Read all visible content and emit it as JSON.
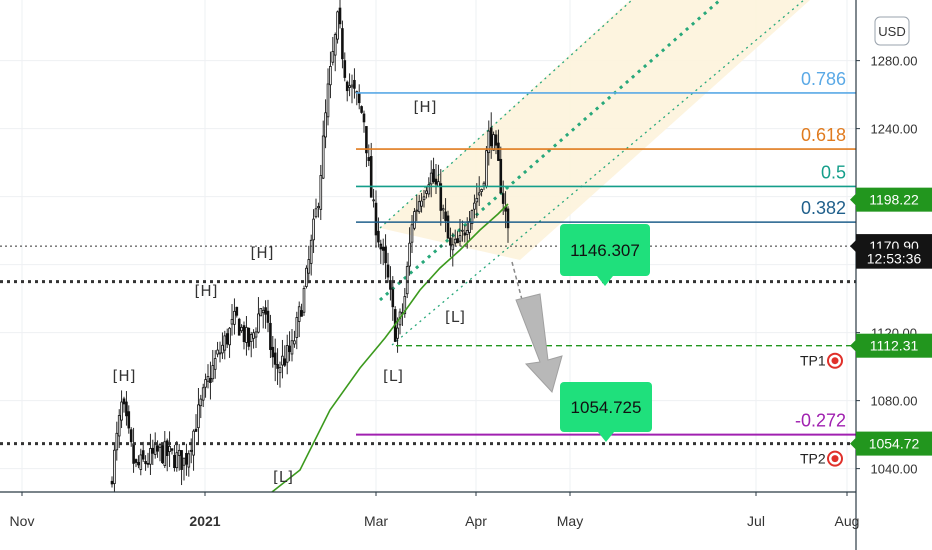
{
  "currency_button": "USD",
  "chart_data": {
    "type": "candlestick",
    "instrument_currency": "USD",
    "y_axis": {
      "ticks": [
        "1280.00",
        "1240.00",
        "1120.00",
        "1080.00",
        "1040.00"
      ],
      "tick_values": [
        1280,
        1240,
        1120,
        1080,
        1040
      ],
      "range": [
        1028,
        1310
      ]
    },
    "x_axis": {
      "ticks": [
        "Nov",
        "2021",
        "Mar",
        "Apr",
        "May",
        "Jul",
        "Aug"
      ]
    },
    "price_tags": [
      {
        "text": "1198.22",
        "value": 1198.22,
        "color": "#22961e",
        "style": "green"
      },
      {
        "text": "1170.90",
        "value": 1170.9,
        "color": "#141414",
        "style": "dark"
      },
      {
        "text": "12:53:36",
        "value": 1163.5,
        "color": "#141414",
        "style": "dark-sub"
      },
      {
        "text": "1112.31",
        "value": 1112.31,
        "color": "#22961e",
        "style": "green"
      },
      {
        "text": "1054.72",
        "value": 1054.72,
        "color": "#22961e",
        "style": "green"
      }
    ],
    "fib_levels": [
      {
        "label": "0.786",
        "value": 1261,
        "color": "#5aa9e6"
      },
      {
        "label": "0.618",
        "value": 1228,
        "color": "#e07b1f"
      },
      {
        "label": "0.5",
        "value": 1206,
        "color": "#149e8a"
      },
      {
        "label": "0.382",
        "value": 1185,
        "color": "#1f5f8b"
      },
      {
        "label": "-0.272",
        "value": 1060,
        "color": "#a020b0"
      }
    ],
    "horizontal_levels": [
      {
        "value": 1170.9,
        "style": "dotted-thin",
        "color": "#333333"
      },
      {
        "value": 1150,
        "style": "dotted-thick",
        "color": "#333333"
      },
      {
        "value": 1054.72,
        "style": "dotted-thick",
        "color": "#333333"
      },
      {
        "value": 1112.31,
        "style": "dashed",
        "color": "#22961e"
      }
    ],
    "callouts": [
      {
        "text": "1146.307",
        "value": 1146.307,
        "color": "#1fe07c"
      },
      {
        "text": "1054.725",
        "value": 1054.725,
        "color": "#1fe07c"
      }
    ],
    "targets": [
      {
        "text": "TP1",
        "value": 1112.31,
        "color": "#e0302a"
      },
      {
        "text": "TP2",
        "value": 1054.72,
        "color": "#e0302a"
      }
    ],
    "pivot_labels": [
      "[H]",
      "[H]",
      "[H]",
      "[H]",
      "[L]",
      "[L]",
      "[L]"
    ],
    "moving_average_color": "#3c9a1e",
    "channel_color": "#28a87a",
    "channel_fill": "#fdf3dc",
    "projection_color": "#b8b8b8"
  }
}
